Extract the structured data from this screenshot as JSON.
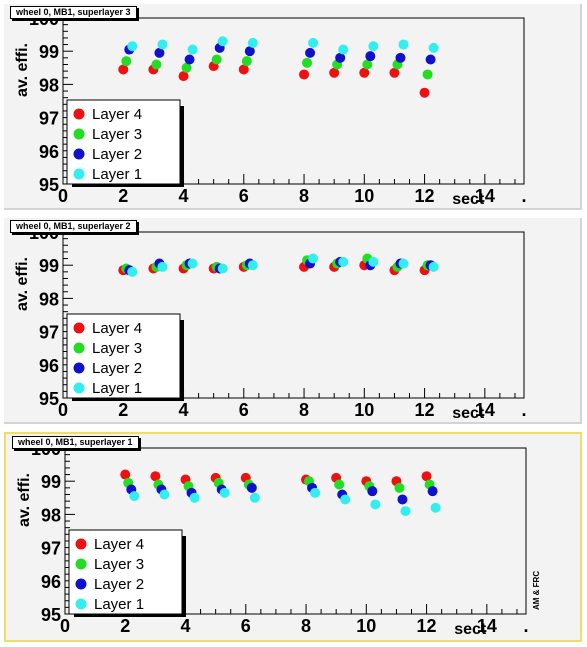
{
  "chart_data": [
    {
      "type": "scatter",
      "title": "wheel 0, MB1, superlayer 3",
      "xlabel": "sect",
      "ylabel": "av. effi.",
      "xlim": [
        0,
        15.3
      ],
      "ylim": [
        95,
        100
      ],
      "xticks": [
        0,
        2,
        4,
        6,
        8,
        10,
        12,
        14
      ],
      "yticks": [
        95,
        96,
        97,
        98,
        99,
        100
      ],
      "series": [
        {
          "name": "Layer 4",
          "color": "#ee1111",
          "x": [
            2,
            3,
            4,
            5,
            6,
            8,
            9,
            10,
            11,
            12
          ],
          "y": [
            98.45,
            98.45,
            98.25,
            98.55,
            98.45,
            98.3,
            98.35,
            98.35,
            98.35,
            97.75
          ]
        },
        {
          "name": "Layer 3",
          "color": "#22dd22",
          "x": [
            2.1,
            3.1,
            4.1,
            5.1,
            6.1,
            8.1,
            9.1,
            10.1,
            11.1,
            12.1
          ],
          "y": [
            98.7,
            98.6,
            98.5,
            98.75,
            98.7,
            98.65,
            98.6,
            98.6,
            98.6,
            98.3
          ]
        },
        {
          "name": "Layer 2",
          "color": "#1111cc",
          "x": [
            2.2,
            3.2,
            4.2,
            5.2,
            6.2,
            8.2,
            9.2,
            10.2,
            11.2,
            12.2
          ],
          "y": [
            99.05,
            98.95,
            98.75,
            99.1,
            99.0,
            98.95,
            98.8,
            98.85,
            98.8,
            98.75
          ]
        },
        {
          "name": "Layer 1",
          "color": "#33eeee",
          "x": [
            2.3,
            3.3,
            4.3,
            5.3,
            6.3,
            8.3,
            9.3,
            10.3,
            11.3,
            12.3
          ],
          "y": [
            99.15,
            99.2,
            99.05,
            99.3,
            99.25,
            99.25,
            99.05,
            99.15,
            99.2,
            99.1
          ]
        }
      ],
      "legend": "bottom-left"
    },
    {
      "type": "scatter",
      "title": "wheel 0, MB1, superlayer 2",
      "xlabel": "sect",
      "ylabel": "av. effi.",
      "xlim": [
        0,
        15.3
      ],
      "ylim": [
        95,
        100
      ],
      "xticks": [
        0,
        2,
        4,
        6,
        8,
        10,
        12,
        14
      ],
      "yticks": [
        95,
        96,
        97,
        98,
        99,
        100
      ],
      "series": [
        {
          "name": "Layer 4",
          "color": "#ee1111",
          "x": [
            2,
            3,
            4,
            5,
            6,
            8,
            9,
            10,
            11,
            12
          ],
          "y": [
            98.85,
            98.9,
            98.9,
            98.9,
            98.95,
            98.95,
            98.95,
            99.0,
            98.85,
            98.85
          ]
        },
        {
          "name": "Layer 3",
          "color": "#22dd22",
          "x": [
            2.1,
            3.1,
            4.1,
            5.1,
            6.1,
            8.1,
            9.1,
            10.1,
            11.1,
            12.1
          ],
          "y": [
            98.9,
            98.95,
            99.0,
            98.95,
            99.0,
            99.15,
            99.05,
            99.2,
            98.95,
            99.0
          ]
        },
        {
          "name": "Layer 2",
          "color": "#1111cc",
          "x": [
            2.2,
            3.2,
            4.2,
            5.2,
            6.2,
            8.2,
            9.2,
            10.2,
            11.2,
            12.2
          ],
          "y": [
            98.85,
            99.05,
            99.05,
            98.9,
            99.05,
            99.05,
            99.1,
            99.0,
            99.05,
            99.0
          ]
        },
        {
          "name": "Layer 1",
          "color": "#33eeee",
          "x": [
            2.3,
            3.3,
            4.3,
            5.3,
            6.3,
            8.3,
            9.3,
            10.3,
            11.3,
            12.3
          ],
          "y": [
            98.8,
            98.95,
            99.05,
            98.9,
            99.0,
            99.2,
            99.1,
            99.1,
            99.05,
            98.95
          ]
        }
      ],
      "legend": "bottom-left"
    },
    {
      "type": "scatter",
      "title": "wheel 0, MB1, superlayer 1",
      "xlabel": "sect",
      "ylabel": "av. effi.",
      "xlim": [
        0,
        15.3
      ],
      "ylim": [
        95,
        100
      ],
      "xticks": [
        0,
        2,
        4,
        6,
        8,
        10,
        12,
        14
      ],
      "yticks": [
        95,
        96,
        97,
        98,
        99,
        100
      ],
      "series": [
        {
          "name": "Layer 4",
          "color": "#ee1111",
          "x": [
            2,
            3,
            4,
            5,
            6,
            8,
            9,
            10,
            11,
            12
          ],
          "y": [
            99.2,
            99.15,
            99.05,
            99.1,
            99.1,
            99.05,
            99.1,
            99.0,
            99.0,
            99.15
          ]
        },
        {
          "name": "Layer 3",
          "color": "#22dd22",
          "x": [
            2.1,
            3.1,
            4.1,
            5.1,
            6.1,
            8.1,
            9.1,
            10.1,
            11.1,
            12.1
          ],
          "y": [
            98.95,
            98.9,
            98.85,
            98.95,
            98.9,
            99.0,
            98.9,
            98.85,
            98.8,
            98.9
          ]
        },
        {
          "name": "Layer 2",
          "color": "#1111cc",
          "x": [
            2.2,
            3.2,
            4.2,
            5.2,
            6.2,
            8.2,
            9.2,
            10.2,
            11.2,
            12.2
          ],
          "y": [
            98.75,
            98.75,
            98.65,
            98.75,
            98.8,
            98.8,
            98.6,
            98.7,
            98.45,
            98.7
          ]
        },
        {
          "name": "Layer 1",
          "color": "#33eeee",
          "x": [
            2.3,
            3.3,
            4.3,
            5.3,
            6.3,
            8.3,
            9.3,
            10.3,
            11.3,
            12.3
          ],
          "y": [
            98.55,
            98.6,
            98.5,
            98.65,
            98.5,
            98.65,
            98.45,
            98.3,
            98.1,
            98.2
          ]
        }
      ],
      "legend": "bottom-left"
    }
  ],
  "extra_tick_label": ".",
  "credit": "AM & FRC"
}
